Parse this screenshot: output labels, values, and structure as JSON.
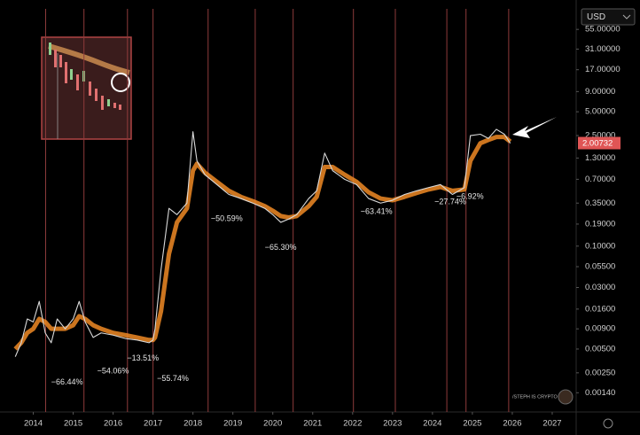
{
  "chart_data": {
    "type": "line",
    "currency": "USD",
    "watermark": "/STEPH IS CRYPTO",
    "log_scale": true,
    "x": [
      2013.55,
      2013.7,
      2013.85,
      2014.0,
      2014.15,
      2014.3,
      2014.45,
      2014.6,
      2014.8,
      2015.0,
      2015.15,
      2015.3,
      2015.5,
      2015.7,
      2016.0,
      2016.3,
      2016.6,
      2016.9,
      2017.0,
      2017.05,
      2017.2,
      2017.4,
      2017.6,
      2017.85,
      2018.0,
      2018.1,
      2018.3,
      2018.6,
      2018.9,
      2019.2,
      2019.5,
      2019.8,
      2020.0,
      2020.2,
      2020.4,
      2020.6,
      2020.9,
      2021.1,
      2021.3,
      2021.5,
      2021.8,
      2022.1,
      2022.4,
      2022.7,
      2023.0,
      2023.3,
      2023.6,
      2023.9,
      2024.2,
      2024.5,
      2024.8,
      2024.95,
      2025.2,
      2025.4,
      2025.6,
      2025.8,
      2025.95
    ],
    "series": [
      {
        "color": "#f08a24",
        "values": [
          0.005,
          0.006,
          0.008,
          0.009,
          0.012,
          0.011,
          0.009,
          0.009,
          0.009,
          0.01,
          0.013,
          0.012,
          0.01,
          0.009,
          0.008,
          0.0075,
          0.007,
          0.0065,
          0.0065,
          0.007,
          0.015,
          0.08,
          0.2,
          0.3,
          0.9,
          1.1,
          0.85,
          0.65,
          0.5,
          0.42,
          0.37,
          0.32,
          0.28,
          0.24,
          0.23,
          0.24,
          0.32,
          0.42,
          1.0,
          1.0,
          0.8,
          0.65,
          0.48,
          0.4,
          0.38,
          0.42,
          0.47,
          0.52,
          0.56,
          0.5,
          0.52,
          1.2,
          2.0,
          2.2,
          2.4,
          2.4,
          2.1
        ]
      },
      {
        "color": "#d9d9d9",
        "values": [
          0.004,
          0.006,
          0.012,
          0.011,
          0.02,
          0.008,
          0.006,
          0.012,
          0.009,
          0.012,
          0.02,
          0.011,
          0.007,
          0.008,
          0.0075,
          0.0068,
          0.0065,
          0.006,
          0.0065,
          0.009,
          0.05,
          0.3,
          0.25,
          0.35,
          2.8,
          1.2,
          0.8,
          0.6,
          0.45,
          0.4,
          0.35,
          0.3,
          0.25,
          0.2,
          0.22,
          0.25,
          0.4,
          0.5,
          1.5,
          0.9,
          0.7,
          0.6,
          0.4,
          0.35,
          0.38,
          0.45,
          0.5,
          0.55,
          0.6,
          0.45,
          0.55,
          2.5,
          2.6,
          2.3,
          3.0,
          2.6,
          2.0
        ]
      }
    ],
    "last_price": 2.00732,
    "last_price_color": "#e05555",
    "xlim": [
      2013.5,
      2027.6
    ],
    "xticks": [
      2014,
      2015,
      2016,
      2017,
      2018,
      2019,
      2020,
      2021,
      2022,
      2023,
      2024,
      2025,
      2026,
      2027
    ],
    "ylim": [
      0.0008,
      100
    ],
    "yticks": [
      {
        "value": 55,
        "label": "55.00000"
      },
      {
        "value": 31,
        "label": "31.00000"
      },
      {
        "value": 17,
        "label": "17.00000"
      },
      {
        "value": 9,
        "label": "9.00000"
      },
      {
        "value": 5,
        "label": "5.00000"
      },
      {
        "value": 2.5,
        "label": "2.50000"
      },
      {
        "value": 1.3,
        "label": "1.30000"
      },
      {
        "value": 0.7,
        "label": "0.70000"
      },
      {
        "value": 0.35,
        "label": "0.35000"
      },
      {
        "value": 0.19,
        "label": "0.19000"
      },
      {
        "value": 0.1,
        "label": "0.10000"
      },
      {
        "value": 0.055,
        "label": "0.05500"
      },
      {
        "value": 0.03,
        "label": "0.03000"
      },
      {
        "value": 0.016,
        "label": "0.01600"
      },
      {
        "value": 0.009,
        "label": "0.00900"
      },
      {
        "value": 0.005,
        "label": "0.00500"
      },
      {
        "value": 0.0025,
        "label": "0.00250"
      },
      {
        "value": 0.0014,
        "label": "0.00140"
      }
    ],
    "vlines": [
      2014.31,
      2015.27,
      2016.36,
      2017.0,
      2018.38,
      2019.56,
      2020.51,
      2022.02,
      2023.07,
      2024.36,
      2024.84,
      2025.91
    ],
    "vline_color": "#8e3b3b",
    "annotations": [
      {
        "text": "−66.44%",
        "x": 2014.45,
        "y": 0.0019
      },
      {
        "text": "−54.06%",
        "x": 2015.6,
        "y": 0.0026
      },
      {
        "text": "−13.51%",
        "x": 2016.35,
        "y": 0.0038
      },
      {
        "text": "−55.74%",
        "x": 2017.1,
        "y": 0.0021
      },
      {
        "text": "−50.59%",
        "x": 2018.45,
        "y": 0.22
      },
      {
        "text": "−65.30%",
        "x": 2019.8,
        "y": 0.095
      },
      {
        "text": "−63.41%",
        "x": 2022.2,
        "y": 0.27
      },
      {
        "text": "−27.74%",
        "x": 2024.05,
        "y": 0.36
      },
      {
        "text": "−6.92%",
        "x": 2024.6,
        "y": 0.42
      }
    ]
  }
}
